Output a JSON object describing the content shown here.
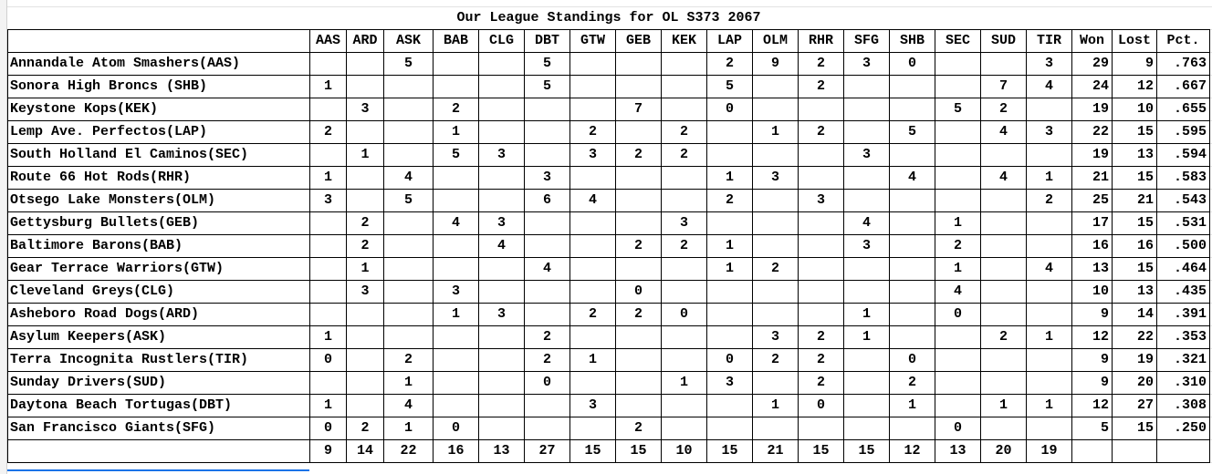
{
  "title": "Our League Standings for OL S373 2067",
  "columns": [
    "AAS",
    "ARD",
    "ASK",
    "BAB",
    "CLG",
    "DBT",
    "GTW",
    "GEB",
    "KEK",
    "LAP",
    "OLM",
    "RHR",
    "SFG",
    "SHB",
    "SEC",
    "SUD",
    "TIR"
  ],
  "stat_headers": {
    "won": "Won",
    "lost": "Lost",
    "pct": "Pct."
  },
  "rows": [
    {
      "team": "Annandale Atom Smashers(AAS)",
      "cells": [
        "",
        "",
        "5",
        "",
        "",
        "5",
        "",
        "",
        "",
        "2",
        "9",
        "2",
        "3",
        "0",
        "",
        "",
        "3"
      ],
      "won": "29",
      "lost": "9",
      "pct": ".763"
    },
    {
      "team": "Sonora High Broncs (SHB)",
      "cells": [
        "1",
        "",
        "",
        "",
        "",
        "5",
        "",
        "",
        "",
        "5",
        "",
        "2",
        "",
        "",
        "",
        "7",
        "4"
      ],
      "won": "24",
      "lost": "12",
      "pct": ".667"
    },
    {
      "team": "Keystone Kops(KEK)",
      "cells": [
        "",
        "3",
        "",
        "2",
        "",
        "",
        "",
        "7",
        "",
        "0",
        "",
        "",
        "",
        "",
        "5",
        "2",
        ""
      ],
      "won": "19",
      "lost": "10",
      "pct": ".655"
    },
    {
      "team": "Lemp Ave. Perfectos(LAP)",
      "cells": [
        "2",
        "",
        "",
        "1",
        "",
        "",
        "2",
        "",
        "2",
        "",
        "1",
        "2",
        "",
        "5",
        "",
        "4",
        "3"
      ],
      "won": "22",
      "lost": "15",
      "pct": ".595"
    },
    {
      "team": "South Holland El Caminos(SEC)",
      "cells": [
        "",
        "1",
        "",
        "5",
        "3",
        "",
        "3",
        "2",
        "2",
        "",
        "",
        "",
        "3",
        "",
        "",
        "",
        ""
      ],
      "won": "19",
      "lost": "13",
      "pct": ".594"
    },
    {
      "team": "Route 66 Hot Rods(RHR)",
      "cells": [
        "1",
        "",
        "4",
        "",
        "",
        "3",
        "",
        "",
        "",
        "1",
        "3",
        "",
        "",
        "4",
        "",
        "4",
        "1"
      ],
      "won": "21",
      "lost": "15",
      "pct": ".583"
    },
    {
      "team": "Otsego Lake Monsters(OLM)",
      "cells": [
        "3",
        "",
        "5",
        "",
        "",
        "6",
        "4",
        "",
        "",
        "2",
        "",
        "3",
        "",
        "",
        "",
        "",
        "2"
      ],
      "won": "25",
      "lost": "21",
      "pct": ".543"
    },
    {
      "team": "Gettysburg Bullets(GEB)",
      "cells": [
        "",
        "2",
        "",
        "4",
        "3",
        "",
        "",
        "",
        "3",
        "",
        "",
        "",
        "4",
        "",
        "1",
        "",
        ""
      ],
      "won": "17",
      "lost": "15",
      "pct": ".531"
    },
    {
      "team": "Baltimore Barons(BAB)",
      "cells": [
        "",
        "2",
        "",
        "",
        "4",
        "",
        "",
        "2",
        "2",
        "1",
        "",
        "",
        "3",
        "",
        "2",
        "",
        ""
      ],
      "won": "16",
      "lost": "16",
      "pct": ".500"
    },
    {
      "team": "Gear Terrace Warriors(GTW)",
      "cells": [
        "",
        "1",
        "",
        "",
        "",
        "4",
        "",
        "",
        "",
        "1",
        "2",
        "",
        "",
        "",
        "1",
        "",
        "4"
      ],
      "won": "13",
      "lost": "15",
      "pct": ".464"
    },
    {
      "team": "Cleveland Greys(CLG)",
      "cells": [
        "",
        "3",
        "",
        "3",
        "",
        "",
        "",
        "0",
        "",
        "",
        "",
        "",
        "",
        "",
        "4",
        "",
        ""
      ],
      "won": "10",
      "lost": "13",
      "pct": ".435"
    },
    {
      "team": "Asheboro Road Dogs(ARD)",
      "cells": [
        "",
        "",
        "",
        "1",
        "3",
        "",
        "2",
        "2",
        "0",
        "",
        "",
        "",
        "1",
        "",
        "0",
        "",
        ""
      ],
      "won": "9",
      "lost": "14",
      "pct": ".391"
    },
    {
      "team": "Asylum Keepers(ASK)",
      "cells": [
        "1",
        "",
        "",
        "",
        "",
        "2",
        "",
        "",
        "",
        "",
        "3",
        "2",
        "1",
        "",
        "",
        "2",
        "1"
      ],
      "won": "12",
      "lost": "22",
      "pct": ".353"
    },
    {
      "team": "Terra Incognita Rustlers(TIR)",
      "cells": [
        "0",
        "",
        "2",
        "",
        "",
        "2",
        "1",
        "",
        "",
        "0",
        "2",
        "2",
        "",
        "0",
        "",
        "",
        ""
      ],
      "won": "9",
      "lost": "19",
      "pct": ".321"
    },
    {
      "team": "Sunday Drivers(SUD)",
      "cells": [
        "",
        "",
        "1",
        "",
        "",
        "0",
        "",
        "",
        "1",
        "3",
        "",
        "2",
        "",
        "2",
        "",
        "",
        ""
      ],
      "won": "9",
      "lost": "20",
      "pct": ".310"
    },
    {
      "team": "Daytona Beach Tortugas(DBT)",
      "cells": [
        "1",
        "",
        "4",
        "",
        "",
        "",
        "3",
        "",
        "",
        "",
        "1",
        "0",
        "",
        "1",
        "",
        "1",
        "1"
      ],
      "won": "12",
      "lost": "27",
      "pct": ".308"
    },
    {
      "team": "San Francisco Giants(SFG)",
      "cells": [
        "0",
        "2",
        "1",
        "0",
        "",
        "",
        "",
        "2",
        "",
        "",
        "",
        "",
        "",
        "",
        "0",
        "",
        ""
      ],
      "won": "5",
      "lost": "15",
      "pct": ".250"
    }
  ],
  "totals": [
    "9",
    "14",
    "22",
    "16",
    "13",
    "27",
    "15",
    "15",
    "10",
    "15",
    "21",
    "15",
    "15",
    "12",
    "13",
    "20",
    "19"
  ],
  "colors": {
    "selection": "#1a73e8",
    "gridline": "#e2e2e2"
  }
}
